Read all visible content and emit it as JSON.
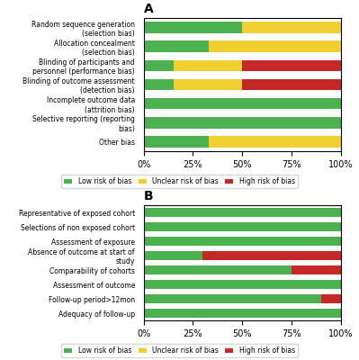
{
  "chart_data": [
    {
      "type": "bar",
      "orientation": "horizontal",
      "stacked": true,
      "title": "A",
      "categories": [
        "Other bias",
        "Selective reporting (reporting bias)",
        "Incomplete outcome data (attrition bias)",
        "Blinding of outcome assessment (detection bias)",
        "Blinding of participants and personnel (performance bias)",
        "Allocation concealment (selection bias)",
        "Random sequence generation (selection bias)"
      ],
      "series": [
        {
          "name": "Low risk of bias",
          "color": "#4CAF50",
          "values": [
            33,
            100,
            100,
            15,
            15,
            33,
            50
          ]
        },
        {
          "name": "Unclear risk of bias",
          "color": "#F0D030",
          "values": [
            67,
            0,
            0,
            35,
            35,
            67,
            50
          ]
        },
        {
          "name": "High risk of bias",
          "color": "#C62828",
          "values": [
            0,
            0,
            0,
            50,
            50,
            0,
            0
          ]
        }
      ],
      "xlim": [
        0,
        100
      ],
      "xticks": [
        {
          "value": 0,
          "label": "0%"
        },
        {
          "value": 25,
          "label": "25%"
        },
        {
          "value": 50,
          "label": "50%"
        },
        {
          "value": 75,
          "label": "75%"
        },
        {
          "value": 100,
          "label": "100%"
        }
      ],
      "legend": "upper center"
    },
    {
      "type": "bar",
      "orientation": "horizontal",
      "stacked": true,
      "title": "B",
      "categories": [
        "Adequacy of follow-up",
        "Follow-up period>12mon",
        "Assessment of outcome",
        "Comparability of cohorts",
        "Absence of outcome at start of study",
        "Assessment of exposure",
        "Selections of non exposed cohort",
        "Representative of exposed cohort"
      ],
      "series": [
        {
          "name": "Low risk of bias",
          "color": "#4CAF50",
          "values": [
            100,
            90,
            100,
            75,
            30,
            100,
            100,
            100
          ]
        },
        {
          "name": "Unclear risk of bias",
          "color": "#F0D030",
          "values": [
            0,
            0,
            0,
            0,
            0,
            0,
            0,
            0
          ]
        },
        {
          "name": "High risk of bias",
          "color": "#C62828",
          "values": [
            0,
            10,
            0,
            25,
            70,
            0,
            0,
            0
          ]
        }
      ],
      "xlim": [
        0,
        100
      ],
      "xticks": [
        {
          "value": 0,
          "label": "0%"
        },
        {
          "value": 25,
          "label": "25%"
        },
        {
          "value": 50,
          "label": "50%"
        },
        {
          "value": 75,
          "label": "75%"
        },
        {
          "value": 100,
          "label": "100%"
        }
      ],
      "legend": "upper center"
    }
  ]
}
